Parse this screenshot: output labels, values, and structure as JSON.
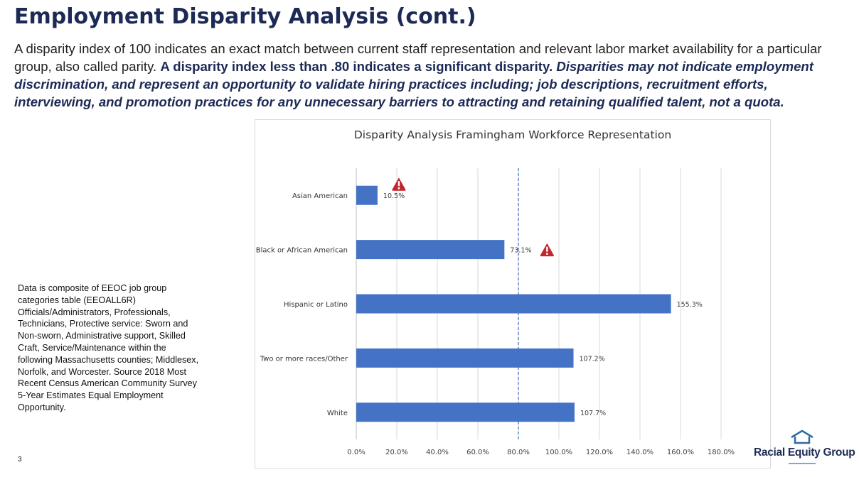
{
  "header": {
    "title": "Employment Disparity Analysis (cont.)",
    "intro_plain": "A disparity index of 100 indicates an exact match between current staff representation and relevant labor market availability for a particular group, also called parity.",
    "intro_bold": "A disparity index less than .80 indicates a significant disparity.",
    "intro_italic": "Disparities may not indicate employment discrimination, and represent an opportunity to validate hiring practices including; job descriptions, recruitment efforts, interviewing, and promotion practices for any unnecessary barriers to attracting and retaining qualified talent, not a quota."
  },
  "footnote": "Data is composite of EEOC job group categories table (EEOALL6R) Officials/Administrators, Professionals, Technicians, Protective service: Sworn and Non-sworn, Administrative support, Skilled Craft, Service/Maintenance within the following Massachusetts counties; Middlesex, Norfolk, and Worcester. Source 2018 Most Recent Census American Community Survey 5-Year Estimates Equal Employment Opportunity.",
  "page_number": "3",
  "logo": {
    "text": "Racial Equity Group",
    "icon": "house-outline-icon"
  },
  "colors": {
    "bar": "#4472c4",
    "title": "#1c2a55",
    "warning": "#c0262d",
    "threshold": "#4472c4"
  },
  "chart_data": {
    "type": "bar",
    "orientation": "horizontal",
    "title": "Disparity Analysis Framingham Workforce Representation",
    "categories": [
      "Asian American",
      "Black or African American",
      "Hispanic or Latino",
      "Two or more races/Other",
      "White"
    ],
    "values": [
      10.5,
      73.1,
      155.3,
      107.2,
      107.7
    ],
    "value_labels": [
      "10.5%",
      "73.1%",
      "155.3%",
      "107.2%",
      "107.7%"
    ],
    "warnings": [
      true,
      true,
      false,
      false,
      false
    ],
    "threshold": 80,
    "xlim": [
      0,
      180
    ],
    "xticks": [
      0,
      20,
      40,
      60,
      80,
      100,
      120,
      140,
      160,
      180
    ],
    "xtick_labels": [
      "0.0%",
      "20.0%",
      "40.0%",
      "60.0%",
      "80.0%",
      "100.0%",
      "120.0%",
      "140.0%",
      "160.0%",
      "180.0%"
    ],
    "xlabel": "",
    "ylabel": "",
    "grid": true
  }
}
